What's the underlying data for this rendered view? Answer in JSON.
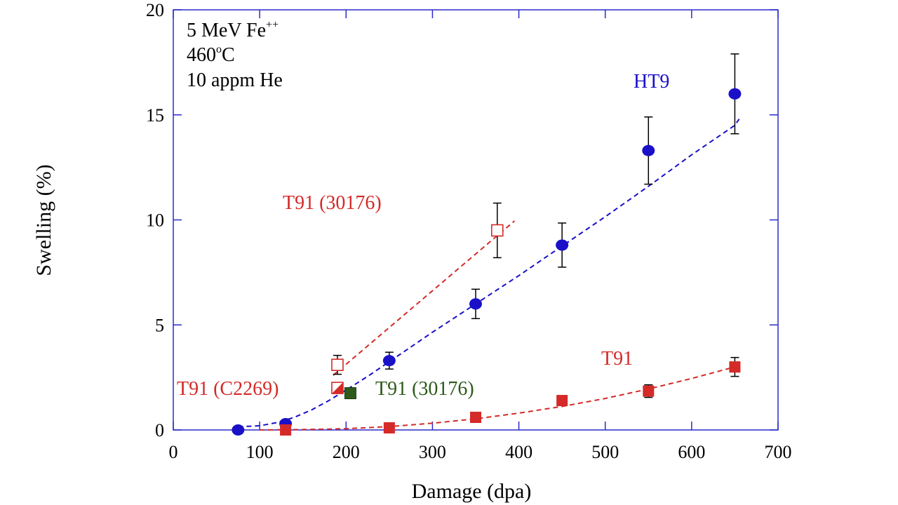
{
  "chart_data": {
    "type": "scatter",
    "title": "",
    "xlabel": "Damage (dpa)",
    "ylabel": "Swelling (%)",
    "xlim": [
      0,
      700
    ],
    "ylim": [
      0,
      20
    ],
    "xticks": [
      0,
      100,
      200,
      300,
      400,
      500,
      600,
      700
    ],
    "yticks": [
      0,
      5,
      10,
      15,
      20
    ],
    "conditions": {
      "beam_prefix": "5 MeV Fe",
      "beam_charge": "++",
      "temp_value": "460",
      "temp_degree": "o",
      "temp_unit": "C",
      "helium": "10 appm He"
    },
    "series": [
      {
        "name": "HT9",
        "color": "#1a10c8",
        "marker": "circle",
        "points": [
          {
            "x": 75,
            "y": 0.0
          },
          {
            "x": 130,
            "y": 0.3
          },
          {
            "x": 250,
            "y": 3.3,
            "err": 0.4
          },
          {
            "x": 350,
            "y": 6.0,
            "err": 0.7
          },
          {
            "x": 450,
            "y": 8.8,
            "err": 1.05
          },
          {
            "x": 550,
            "y": 13.3,
            "err": 1.6
          },
          {
            "x": 650,
            "y": 16.0,
            "err": 1.9
          }
        ],
        "fit": [
          [
            75,
            0.15
          ],
          [
            100,
            0.2
          ],
          [
            120,
            0.35
          ],
          [
            140,
            0.6
          ],
          [
            160,
            0.95
          ],
          [
            180,
            1.4
          ],
          [
            200,
            1.9
          ],
          [
            225,
            2.55
          ],
          [
            250,
            3.25
          ],
          [
            300,
            4.65
          ],
          [
            350,
            6.0
          ],
          [
            400,
            7.35
          ],
          [
            450,
            8.75
          ],
          [
            500,
            10.15
          ],
          [
            550,
            11.6
          ],
          [
            600,
            13.1
          ],
          [
            650,
            14.5
          ],
          [
            655,
            14.8
          ]
        ]
      },
      {
        "name": "T91",
        "color": "#d42a28",
        "marker": "square",
        "points": [
          {
            "x": 130,
            "y": 0.0
          },
          {
            "x": 250,
            "y": 0.1
          },
          {
            "x": 350,
            "y": 0.6
          },
          {
            "x": 450,
            "y": 1.4
          },
          {
            "x": 550,
            "y": 1.85,
            "err": 0.3
          },
          {
            "x": 650,
            "y": 3.0,
            "err": 0.45
          }
        ],
        "fit": [
          [
            100,
            0.0
          ],
          [
            150,
            0.02
          ],
          [
            200,
            0.06
          ],
          [
            250,
            0.16
          ],
          [
            300,
            0.32
          ],
          [
            350,
            0.53
          ],
          [
            400,
            0.8
          ],
          [
            450,
            1.12
          ],
          [
            500,
            1.5
          ],
          [
            550,
            1.95
          ],
          [
            600,
            2.45
          ],
          [
            650,
            3.0
          ]
        ]
      },
      {
        "name": "T91 (30176)",
        "color": "#d42a28",
        "marker": "open-square",
        "points": [
          {
            "x": 190,
            "y": 3.1,
            "err": 0.45
          },
          {
            "x": 375,
            "y": 9.5,
            "err": 1.3
          }
        ],
        "fit": [
          [
            185,
            2.6
          ],
          [
            395,
            9.95
          ]
        ]
      },
      {
        "name": "T91 (C2269)",
        "color": "#d42a28",
        "marker": "half-square",
        "points": [
          {
            "x": 190,
            "y": 2.0
          }
        ]
      },
      {
        "name": "T91 (30176)",
        "color": "#2d5a1a",
        "marker": "filled-square-dark",
        "points": [
          {
            "x": 205,
            "y": 1.75
          }
        ]
      }
    ],
    "annotations": [
      {
        "text": "HT9",
        "color": "#1a10c8",
        "anchor": "top-right"
      },
      {
        "text": "T91 (30176)",
        "color": "#d42a28",
        "anchor": "middle-left"
      },
      {
        "text": "T91",
        "color": "#d42a28",
        "anchor": "lower-right"
      },
      {
        "text": "T91 (C2269)",
        "color": "#d42a28",
        "anchor": "lower-left"
      },
      {
        "text": "T91 (30176)",
        "color": "#2d5a1a",
        "anchor": "lower-middle"
      }
    ]
  }
}
